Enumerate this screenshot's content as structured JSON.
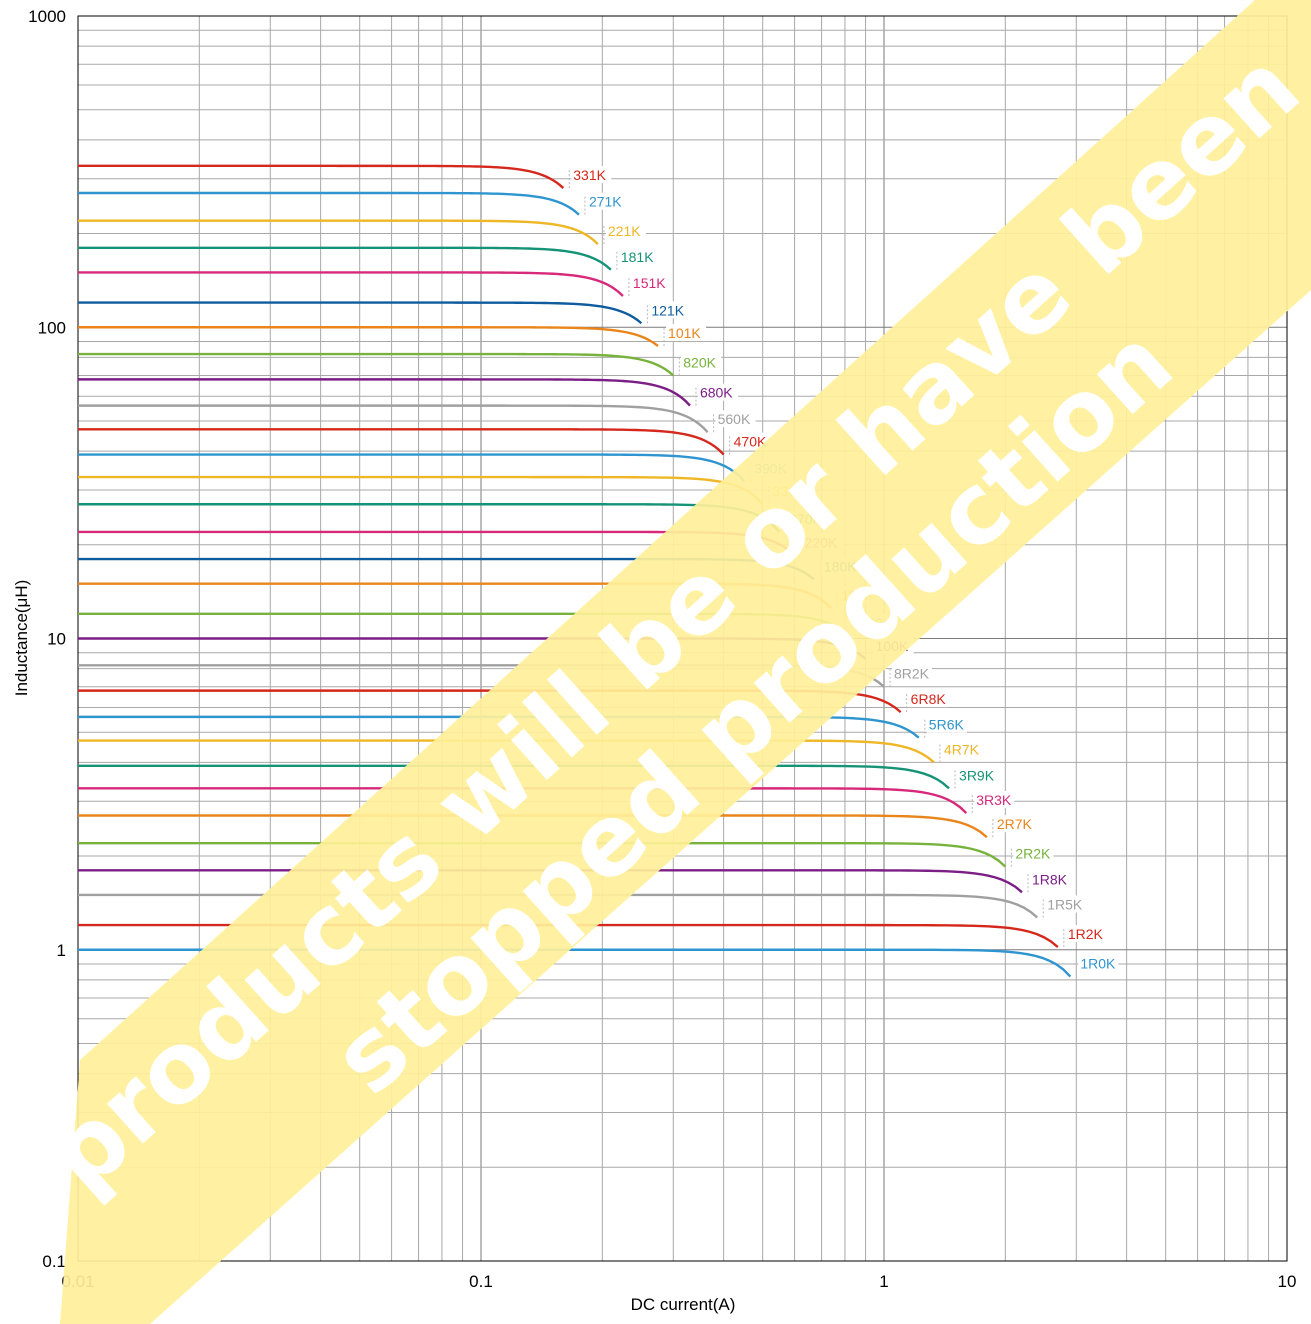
{
  "chart_data": {
    "type": "line",
    "title": "",
    "xlabel": "DC current(A)",
    "ylabel": "Inductance(μH)",
    "xscale": "log",
    "yscale": "log",
    "xlim": [
      0.01,
      10
    ],
    "ylim": [
      0.1,
      1000
    ],
    "grid": true,
    "legend": "labels at curve ends",
    "x_ticks": [
      "0.01",
      "0.1",
      "1",
      "10"
    ],
    "y_ticks": [
      "0.1",
      "1",
      "10",
      "100",
      "1000"
    ],
    "series": [
      {
        "name": "331K",
        "color": "#d5281d",
        "L0": 330,
        "Isat": 0.16,
        "Lend": 280
      },
      {
        "name": "271K",
        "color": "#2f95d0",
        "L0": 270,
        "Isat": 0.175,
        "Lend": 230
      },
      {
        "name": "221K",
        "color": "#efb625",
        "L0": 220,
        "Isat": 0.195,
        "Lend": 185
      },
      {
        "name": "181K",
        "color": "#169377",
        "L0": 180,
        "Isat": 0.21,
        "Lend": 153
      },
      {
        "name": "151K",
        "color": "#d7287a",
        "L0": 150,
        "Isat": 0.225,
        "Lend": 126
      },
      {
        "name": "121K",
        "color": "#0e5b9e",
        "L0": 120,
        "Isat": 0.25,
        "Lend": 103
      },
      {
        "name": "101K",
        "color": "#e9851b",
        "L0": 100,
        "Isat": 0.275,
        "Lend": 87
      },
      {
        "name": "820K",
        "color": "#77b33c",
        "L0": 82,
        "Isat": 0.3,
        "Lend": 70
      },
      {
        "name": "680K",
        "color": "#7b1e86",
        "L0": 68,
        "Isat": 0.33,
        "Lend": 56
      },
      {
        "name": "560K",
        "color": "#a0a0a0",
        "L0": 56,
        "Isat": 0.365,
        "Lend": 46
      },
      {
        "name": "470K",
        "color": "#d5281d",
        "L0": 47,
        "Isat": 0.4,
        "Lend": 39
      },
      {
        "name": "390K",
        "color": "#2f95d0",
        "L0": 39,
        "Isat": 0.45,
        "Lend": 32
      },
      {
        "name": "330K",
        "color": "#efb625",
        "L0": 33,
        "Isat": 0.5,
        "Lend": 27
      },
      {
        "name": "270K",
        "color": "#169377",
        "L0": 27,
        "Isat": 0.55,
        "Lend": 22
      },
      {
        "name": "220K",
        "color": "#d7287a",
        "L0": 22,
        "Isat": 0.6,
        "Lend": 18.5
      },
      {
        "name": "180K",
        "color": "#0e5b9e",
        "L0": 18,
        "Isat": 0.67,
        "Lend": 15.5
      },
      {
        "name": "150K",
        "color": "#e9851b",
        "L0": 15,
        "Isat": 0.74,
        "Lend": 12.5
      },
      {
        "name": "120K",
        "color": "#77b33c",
        "L0": 12,
        "Isat": 0.82,
        "Lend": 10.2
      },
      {
        "name": "100K",
        "color": "#7b1e86",
        "L0": 10,
        "Isat": 0.9,
        "Lend": 8.6
      },
      {
        "name": "8R2K",
        "color": "#a0a0a0",
        "L0": 8.2,
        "Isat": 1.0,
        "Lend": 7.0
      },
      {
        "name": "6R8K",
        "color": "#d5281d",
        "L0": 6.8,
        "Isat": 1.1,
        "Lend": 5.8
      },
      {
        "name": "5R6K",
        "color": "#2f95d0",
        "L0": 5.6,
        "Isat": 1.22,
        "Lend": 4.8
      },
      {
        "name": "4R7K",
        "color": "#efb625",
        "L0": 4.7,
        "Isat": 1.33,
        "Lend": 4.0
      },
      {
        "name": "3R9K",
        "color": "#169377",
        "L0": 3.9,
        "Isat": 1.45,
        "Lend": 3.3
      },
      {
        "name": "3R3K",
        "color": "#d7287a",
        "L0": 3.3,
        "Isat": 1.6,
        "Lend": 2.75
      },
      {
        "name": "2R7K",
        "color": "#e9851b",
        "L0": 2.7,
        "Isat": 1.8,
        "Lend": 2.3
      },
      {
        "name": "2R2K",
        "color": "#77b33c",
        "L0": 2.2,
        "Isat": 2.0,
        "Lend": 1.85
      },
      {
        "name": "1R8K",
        "color": "#7b1e86",
        "L0": 1.8,
        "Isat": 2.2,
        "Lend": 1.53
      },
      {
        "name": "1R5K",
        "color": "#a0a0a0",
        "L0": 1.5,
        "Isat": 2.4,
        "Lend": 1.27
      },
      {
        "name": "1R2K",
        "color": "#d5281d",
        "L0": 1.2,
        "Isat": 2.7,
        "Lend": 1.02
      },
      {
        "name": "1R0K",
        "color": "#2f95d0",
        "L0": 1.0,
        "Isat": 2.9,
        "Lend": 0.82
      }
    ]
  },
  "watermark": {
    "lines": [
      "products will be or have been",
      "stopped production"
    ],
    "band_color": "#fff099",
    "band_opacity": 0.92
  }
}
